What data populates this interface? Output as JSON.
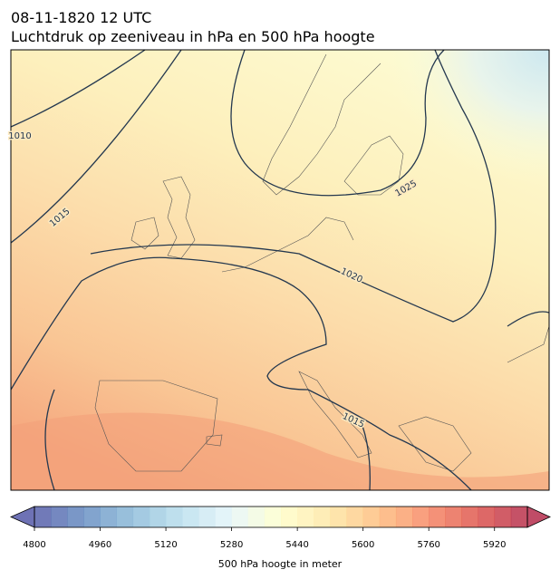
{
  "header": {
    "datetime": "08-11-1820 12 UTC",
    "title": "Luchtdruk op zeeniveau in hPa en 500 hPa hoogte"
  },
  "map": {
    "contour_labels": [
      "1010",
      "1015",
      "1020",
      "1025",
      "1015"
    ],
    "contour_color": "#24384f"
  },
  "colorbar": {
    "label": "500 hPa hoogte in meter",
    "range": [
      4800,
      6000
    ],
    "step": 40,
    "ticks": [
      4800,
      4960,
      5120,
      5280,
      5440,
      5600,
      5760,
      5920
    ],
    "colors": [
      "#313695",
      "#4575b4",
      "#74add1",
      "#abd9e9",
      "#e0f3f8",
      "#ffffbf",
      "#fee090",
      "#fdae61",
      "#f46d43",
      "#d73027",
      "#a50026"
    ],
    "alpha": 0.7
  }
}
